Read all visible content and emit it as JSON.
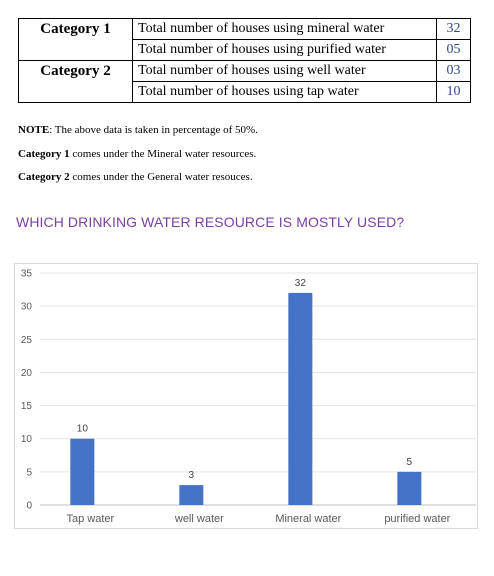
{
  "table": {
    "rows": [
      {
        "category": "Category 1",
        "description": "Total number of houses using mineral water",
        "value": "32"
      },
      {
        "category": "",
        "description": "Total number of houses using purified water",
        "value": "05"
      },
      {
        "category": "Category 2",
        "description": "Total number of houses using well water",
        "value": "03"
      },
      {
        "category": "",
        "description": "Total number of houses using tap water",
        "value": "10"
      }
    ]
  },
  "notes": {
    "note_label": "NOTE",
    "note_text": ": The above data is taken in percentage of 50%.",
    "cat1_label": "Category 1",
    "cat1_text": " comes under the Mineral water resources.",
    "cat2_label": "Category 2",
    "cat2_text": " comes under the General water resouces."
  },
  "question": "WHICH DRINKING WATER RESOURCE IS MOSTLY USED?",
  "chart_data": {
    "type": "bar",
    "categories": [
      "Tap water",
      "well water",
      "Mineral water",
      "purified water"
    ],
    "values": [
      10,
      3,
      32,
      5
    ],
    "ylim": [
      0,
      35
    ],
    "yticks": [
      0,
      5,
      10,
      15,
      20,
      25,
      30,
      35
    ],
    "grid": true,
    "bar_color": "#4472c4",
    "title": "",
    "xlabel": "",
    "ylabel": ""
  }
}
